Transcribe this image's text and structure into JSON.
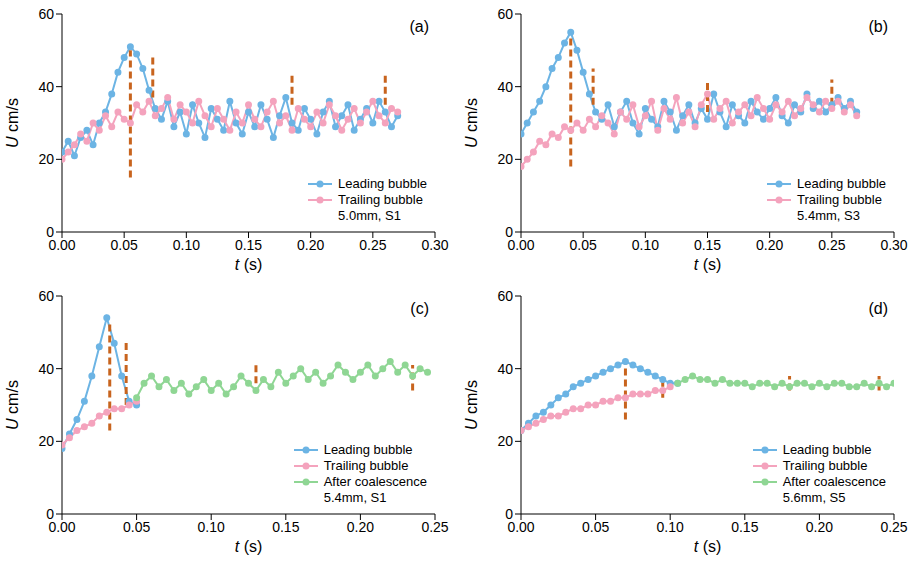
{
  "chart_data": [
    {
      "type": "line",
      "title": "(a)",
      "xlabel": "t (s)",
      "ylabel": "U cm/s",
      "annotation": "5.0mm, S1",
      "legend": "lower right",
      "grid": false,
      "marker": "circle",
      "xlim": [
        0,
        0.3
      ],
      "xticks": [
        {
          "value": 0,
          "label": "0.00"
        },
        {
          "value": 0.05,
          "label": "0.05"
        },
        {
          "value": 0.1,
          "label": "0.10"
        },
        {
          "value": 0.15,
          "label": "0.15"
        },
        {
          "value": 0.2,
          "label": "0.20"
        },
        {
          "value": 0.25,
          "label": "0.25"
        },
        {
          "value": 0.3,
          "label": "0.30"
        }
      ],
      "ylim": [
        0,
        60
      ],
      "yticks": [
        0,
        20,
        40,
        60
      ],
      "x": [
        0,
        0.005,
        0.01,
        0.015,
        0.02,
        0.025,
        0.03,
        0.035,
        0.04,
        0.045,
        0.05,
        0.055,
        0.06,
        0.065,
        0.07,
        0.075,
        0.08,
        0.085,
        0.09,
        0.095,
        0.1,
        0.105,
        0.11,
        0.115,
        0.12,
        0.125,
        0.13,
        0.135,
        0.14,
        0.145,
        0.15,
        0.155,
        0.16,
        0.165,
        0.17,
        0.175,
        0.18,
        0.185,
        0.19,
        0.195,
        0.2,
        0.205,
        0.21,
        0.215,
        0.22,
        0.225,
        0.23,
        0.235,
        0.24,
        0.245,
        0.25,
        0.255,
        0.26,
        0.265,
        0.27
      ],
      "series": [
        {
          "name": "Leading bubble",
          "color": "#6cb4e4",
          "values": [
            22,
            25,
            21,
            26,
            28,
            24,
            30,
            33,
            38,
            44,
            48,
            51,
            49,
            45,
            39,
            34,
            31,
            36,
            29,
            33,
            27,
            35,
            30,
            26,
            34,
            31,
            28,
            36,
            30,
            27,
            33,
            29,
            35,
            31,
            26,
            32,
            37,
            30,
            28,
            34,
            31,
            27,
            33,
            36,
            29,
            32,
            35,
            28,
            31,
            34,
            30,
            36,
            33,
            29,
            32
          ]
        },
        {
          "name": "Trailing bubble",
          "color": "#f4a3bd",
          "values": [
            20,
            22,
            24,
            27,
            25,
            30,
            28,
            32,
            29,
            33,
            31,
            30,
            35,
            33,
            36,
            32,
            34,
            37,
            31,
            35,
            33,
            30,
            36,
            32,
            29,
            34,
            31,
            28,
            33,
            30,
            35,
            31,
            29,
            33,
            36,
            30,
            32,
            28,
            34,
            31,
            29,
            33,
            30,
            35,
            32,
            28,
            31,
            34,
            30,
            33,
            36,
            32,
            30,
            34,
            33
          ]
        }
      ],
      "snapshots": [
        {
          "t": 0.055,
          "u": [
            15,
            50
          ]
        },
        {
          "t": 0.073,
          "u": [
            37,
            48
          ]
        },
        {
          "t": 0.185,
          "u": [
            35,
            43
          ]
        },
        {
          "t": 0.26,
          "u": [
            35,
            43
          ]
        }
      ]
    },
    {
      "type": "line",
      "title": "(b)",
      "xlabel": "t (s)",
      "ylabel": "U cm/s",
      "annotation": "5.4mm, S3",
      "legend": "lower right",
      "grid": false,
      "marker": "circle",
      "xlim": [
        0,
        0.3
      ],
      "xticks": [
        {
          "value": 0,
          "label": "0.00"
        },
        {
          "value": 0.05,
          "label": "0.05"
        },
        {
          "value": 0.1,
          "label": "0.10"
        },
        {
          "value": 0.15,
          "label": "0.15"
        },
        {
          "value": 0.2,
          "label": "0.20"
        },
        {
          "value": 0.25,
          "label": "0.25"
        },
        {
          "value": 0.3,
          "label": "0.30"
        }
      ],
      "ylim": [
        0,
        60
      ],
      "yticks": [
        0,
        20,
        40,
        60
      ],
      "x": [
        0,
        0.005,
        0.01,
        0.015,
        0.02,
        0.025,
        0.03,
        0.035,
        0.04,
        0.045,
        0.05,
        0.055,
        0.06,
        0.065,
        0.07,
        0.075,
        0.08,
        0.085,
        0.09,
        0.095,
        0.1,
        0.105,
        0.11,
        0.115,
        0.12,
        0.125,
        0.13,
        0.135,
        0.14,
        0.145,
        0.15,
        0.155,
        0.16,
        0.165,
        0.17,
        0.175,
        0.18,
        0.185,
        0.19,
        0.195,
        0.2,
        0.205,
        0.21,
        0.215,
        0.22,
        0.225,
        0.23,
        0.235,
        0.24,
        0.245,
        0.25,
        0.255,
        0.26,
        0.265,
        0.27
      ],
      "series": [
        {
          "name": "Leading bubble",
          "color": "#6cb4e4",
          "values": [
            27,
            30,
            33,
            36,
            40,
            45,
            48,
            52,
            55,
            50,
            44,
            38,
            33,
            31,
            35,
            29,
            33,
            36,
            30,
            27,
            34,
            31,
            29,
            36,
            33,
            28,
            32,
            35,
            30,
            34,
            31,
            38,
            33,
            29,
            35,
            32,
            30,
            36,
            33,
            31,
            34,
            37,
            32,
            30,
            35,
            33,
            38,
            34,
            36,
            33,
            35,
            37,
            34,
            36,
            33
          ]
        },
        {
          "name": "Trailing bubble",
          "color": "#f4a3bd",
          "values": [
            18,
            20,
            22,
            25,
            24,
            27,
            26,
            29,
            28,
            30,
            28,
            31,
            29,
            32,
            30,
            27,
            33,
            31,
            35,
            29,
            32,
            36,
            28,
            34,
            31,
            37,
            30,
            33,
            29,
            35,
            38,
            31,
            34,
            36,
            30,
            33,
            35,
            32,
            37,
            34,
            31,
            35,
            33,
            36,
            32,
            34,
            37,
            35,
            33,
            36,
            34,
            36,
            33,
            35,
            32
          ]
        }
      ],
      "snapshots": [
        {
          "t": 0.04,
          "u": [
            18,
            54
          ]
        },
        {
          "t": 0.058,
          "u": [
            35,
            45
          ]
        },
        {
          "t": 0.15,
          "u": [
            33,
            42
          ]
        },
        {
          "t": 0.25,
          "u": [
            35,
            42
          ]
        }
      ]
    },
    {
      "type": "line",
      "title": "(c)",
      "xlabel": "t (s)",
      "ylabel": "U cm/s",
      "annotation": "5.4mm, S1",
      "legend": "lower right",
      "grid": false,
      "marker": "circle",
      "xlim": [
        0,
        0.25
      ],
      "xticks": [
        {
          "value": 0,
          "label": "0.00"
        },
        {
          "value": 0.05,
          "label": "0.05"
        },
        {
          "value": 0.1,
          "label": "0.10"
        },
        {
          "value": 0.15,
          "label": "0.15"
        },
        {
          "value": 0.2,
          "label": "0.20"
        },
        {
          "value": 0.25,
          "label": "0.25"
        }
      ],
      "ylim": [
        0,
        60
      ],
      "yticks": [
        0,
        20,
        40,
        60
      ],
      "x": [
        0,
        0.005,
        0.01,
        0.015,
        0.02,
        0.025,
        0.03,
        0.035,
        0.04,
        0.045,
        0.05,
        0.055,
        0.06,
        0.065,
        0.07,
        0.075,
        0.08,
        0.085,
        0.09,
        0.095,
        0.1,
        0.105,
        0.11,
        0.115,
        0.12,
        0.125,
        0.13,
        0.135,
        0.14,
        0.145,
        0.15,
        0.155,
        0.16,
        0.165,
        0.17,
        0.175,
        0.18,
        0.185,
        0.19,
        0.195,
        0.2,
        0.205,
        0.21,
        0.215,
        0.22,
        0.225,
        0.23,
        0.235,
        0.24,
        0.245
      ],
      "series": [
        {
          "name": "Leading bubble",
          "color": "#6cb4e4",
          "values": [
            18,
            22,
            26,
            31,
            38,
            46,
            54,
            47,
            38,
            31,
            30,
            null,
            null,
            null,
            null,
            null,
            null,
            null,
            null,
            null,
            null,
            null,
            null,
            null,
            null,
            null,
            null,
            null,
            null,
            null,
            null,
            null,
            null,
            null,
            null,
            null,
            null,
            null,
            null,
            null,
            null,
            null,
            null,
            null,
            null,
            null,
            null,
            null,
            null,
            null
          ]
        },
        {
          "name": "Trailing bubble",
          "color": "#f4a3bd",
          "values": [
            19,
            21,
            23,
            24,
            25,
            27,
            28,
            29,
            29,
            30,
            31,
            null,
            null,
            null,
            null,
            null,
            null,
            null,
            null,
            null,
            null,
            null,
            null,
            null,
            null,
            null,
            null,
            null,
            null,
            null,
            null,
            null,
            null,
            null,
            null,
            null,
            null,
            null,
            null,
            null,
            null,
            null,
            null,
            null,
            null,
            null,
            null,
            null,
            null,
            null
          ]
        },
        {
          "name": "After coalescence",
          "color": "#8fd694",
          "values": [
            null,
            null,
            null,
            null,
            null,
            null,
            null,
            null,
            null,
            null,
            32,
            36,
            38,
            35,
            37,
            34,
            36,
            33,
            35,
            37,
            34,
            36,
            33,
            35,
            38,
            36,
            34,
            37,
            35,
            39,
            36,
            38,
            40,
            37,
            39,
            36,
            38,
            41,
            39,
            37,
            39,
            41,
            38,
            40,
            42,
            39,
            41,
            38,
            40,
            39
          ]
        }
      ],
      "snapshots": [
        {
          "t": 0.032,
          "u": [
            23,
            53
          ]
        },
        {
          "t": 0.043,
          "u": [
            30,
            48
          ]
        },
        {
          "t": 0.13,
          "u": [
            36,
            41
          ]
        },
        {
          "t": 0.235,
          "u": [
            34,
            41
          ]
        }
      ]
    },
    {
      "type": "line",
      "title": "(d)",
      "xlabel": "t (s)",
      "ylabel": "U cm/s",
      "annotation": "5.6mm, S5",
      "legend": "lower right",
      "grid": false,
      "marker": "circle",
      "xlim": [
        0,
        0.25
      ],
      "xticks": [
        {
          "value": 0,
          "label": "0.00"
        },
        {
          "value": 0.05,
          "label": "0.05"
        },
        {
          "value": 0.1,
          "label": "0.10"
        },
        {
          "value": 0.15,
          "label": "0.15"
        },
        {
          "value": 0.2,
          "label": "0.20"
        },
        {
          "value": 0.25,
          "label": "0.25"
        }
      ],
      "ylim": [
        0,
        60
      ],
      "yticks": [
        0,
        20,
        40,
        60
      ],
      "x": [
        0,
        0.005,
        0.01,
        0.015,
        0.02,
        0.025,
        0.03,
        0.035,
        0.04,
        0.045,
        0.05,
        0.055,
        0.06,
        0.065,
        0.07,
        0.075,
        0.08,
        0.085,
        0.09,
        0.095,
        0.1,
        0.105,
        0.11,
        0.115,
        0.12,
        0.125,
        0.13,
        0.135,
        0.14,
        0.145,
        0.15,
        0.155,
        0.16,
        0.165,
        0.17,
        0.175,
        0.18,
        0.185,
        0.19,
        0.195,
        0.2,
        0.205,
        0.21,
        0.215,
        0.22,
        0.225,
        0.23,
        0.235,
        0.24,
        0.245,
        0.25
      ],
      "series": [
        {
          "name": "Leading bubble",
          "color": "#6cb4e4",
          "values": [
            23,
            25,
            27,
            28,
            30,
            32,
            33,
            35,
            36,
            37,
            38,
            39,
            40,
            41,
            42,
            41,
            40,
            39,
            38,
            37,
            36,
            36,
            null,
            null,
            null,
            null,
            null,
            null,
            null,
            null,
            null,
            null,
            null,
            null,
            null,
            null,
            null,
            null,
            null,
            null,
            null,
            null,
            null,
            null,
            null,
            null,
            null,
            null,
            null,
            null,
            null
          ]
        },
        {
          "name": "Trailing bubble",
          "color": "#f4a3bd",
          "values": [
            23,
            24,
            25,
            26,
            27,
            27,
            28,
            29,
            29,
            30,
            30,
            31,
            31,
            32,
            32,
            33,
            33,
            33,
            34,
            34,
            35,
            null,
            null,
            null,
            null,
            null,
            null,
            null,
            null,
            null,
            null,
            null,
            null,
            null,
            null,
            null,
            null,
            null,
            null,
            null,
            null,
            null,
            null,
            null,
            null,
            null,
            null,
            null,
            null,
            null,
            null
          ]
        },
        {
          "name": "After coalescence",
          "color": "#8fd694",
          "values": [
            null,
            null,
            null,
            null,
            null,
            null,
            null,
            null,
            null,
            null,
            null,
            null,
            null,
            null,
            null,
            null,
            null,
            null,
            null,
            null,
            null,
            36,
            37,
            38,
            37,
            37,
            36,
            37,
            36,
            36,
            36,
            35,
            36,
            36,
            35,
            36,
            35,
            36,
            36,
            35,
            36,
            35,
            36,
            36,
            35,
            35,
            36,
            35,
            36,
            35,
            36
          ]
        }
      ],
      "snapshots": [
        {
          "t": 0.07,
          "u": [
            26,
            42
          ]
        },
        {
          "t": 0.095,
          "u": [
            32,
            38
          ]
        },
        {
          "t": 0.18,
          "u": [
            34,
            38
          ]
        },
        {
          "t": 0.24,
          "u": [
            34,
            38
          ]
        }
      ]
    }
  ]
}
